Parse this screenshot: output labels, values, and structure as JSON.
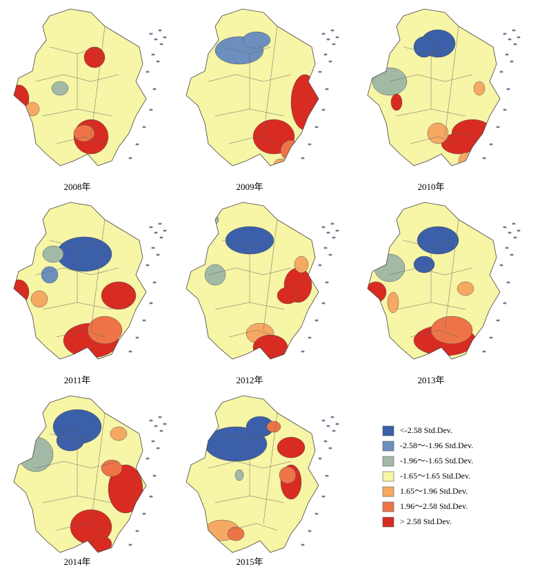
{
  "panels": [
    {
      "caption": "2008年"
    },
    {
      "caption": "2009年"
    },
    {
      "caption": "2010年"
    },
    {
      "caption": "2011年"
    },
    {
      "caption": "2012年"
    },
    {
      "caption": "2013年"
    },
    {
      "caption": "2014年"
    },
    {
      "caption": "2015年"
    }
  ],
  "legend": {
    "items": [
      {
        "label": "<-2.58 Std.Dev.",
        "color": "#3b5fa8"
      },
      {
        "label": "-2.58～-1.96 Std.Dev.",
        "color": "#6c8fbe"
      },
      {
        "label": "-1.96～-1.65 Std.Dev.",
        "color": "#a2b9a6"
      },
      {
        "label": "-1.65～1.65 Std.Dev.",
        "color": "#f7f5a6"
      },
      {
        "label": "1.65～1.96 Std.Dev.",
        "color": "#f5a963"
      },
      {
        "label": "1.96～2.58 Std.Dev.",
        "color": "#ee7447"
      },
      {
        "label": "> 2.58 Std.Dev.",
        "color": "#d82b22"
      }
    ]
  }
}
